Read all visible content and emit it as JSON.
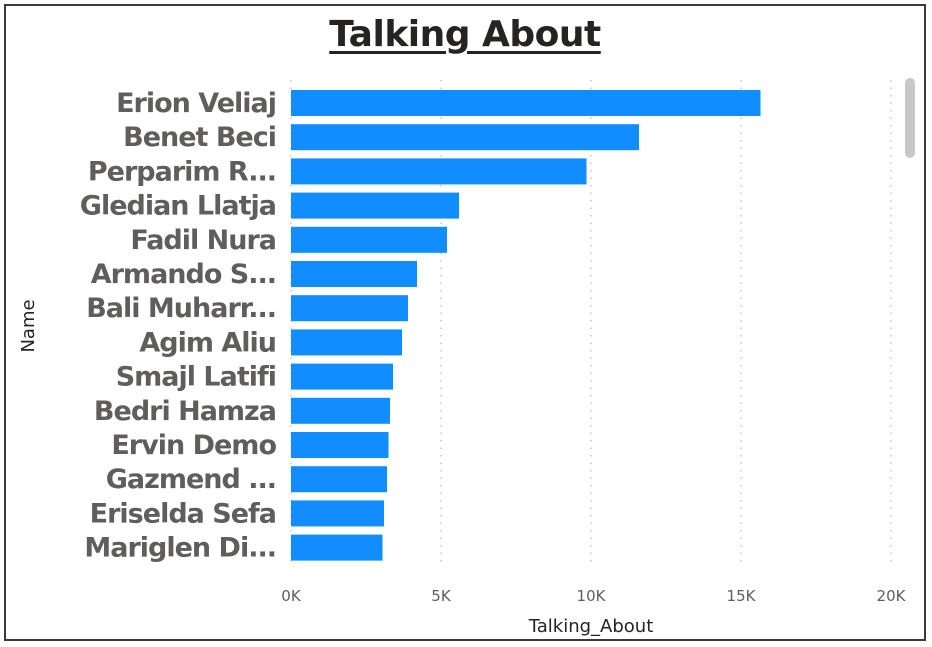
{
  "chart_data": {
    "type": "bar",
    "orientation": "horizontal",
    "title": "Talking About",
    "xlabel": "Talking_About",
    "ylabel": "Name",
    "categories": [
      "Erion Veliaj",
      "Benet Beci",
      "Perparim R...",
      "Gledian Llatja",
      "Fadil Nura",
      "Armando S...",
      "Bali Muharr...",
      "Agim Aliu",
      "Smajl Latifi",
      "Bedri Hamza",
      "Ervin Demo",
      "Gazmend ...",
      "Eriselda Sefa",
      "Mariglen Di..."
    ],
    "values": [
      15650,
      11600,
      9850,
      5600,
      5200,
      4200,
      3900,
      3700,
      3400,
      3300,
      3250,
      3200,
      3100,
      3050
    ],
    "xlim": [
      0,
      20000
    ],
    "xticks": [
      0,
      5000,
      10000,
      15000,
      20000
    ],
    "xtick_labels": [
      "0K",
      "5K",
      "10K",
      "15K",
      "20K"
    ],
    "grid": "vertical-dotted",
    "bar_color": "#118DFF"
  }
}
